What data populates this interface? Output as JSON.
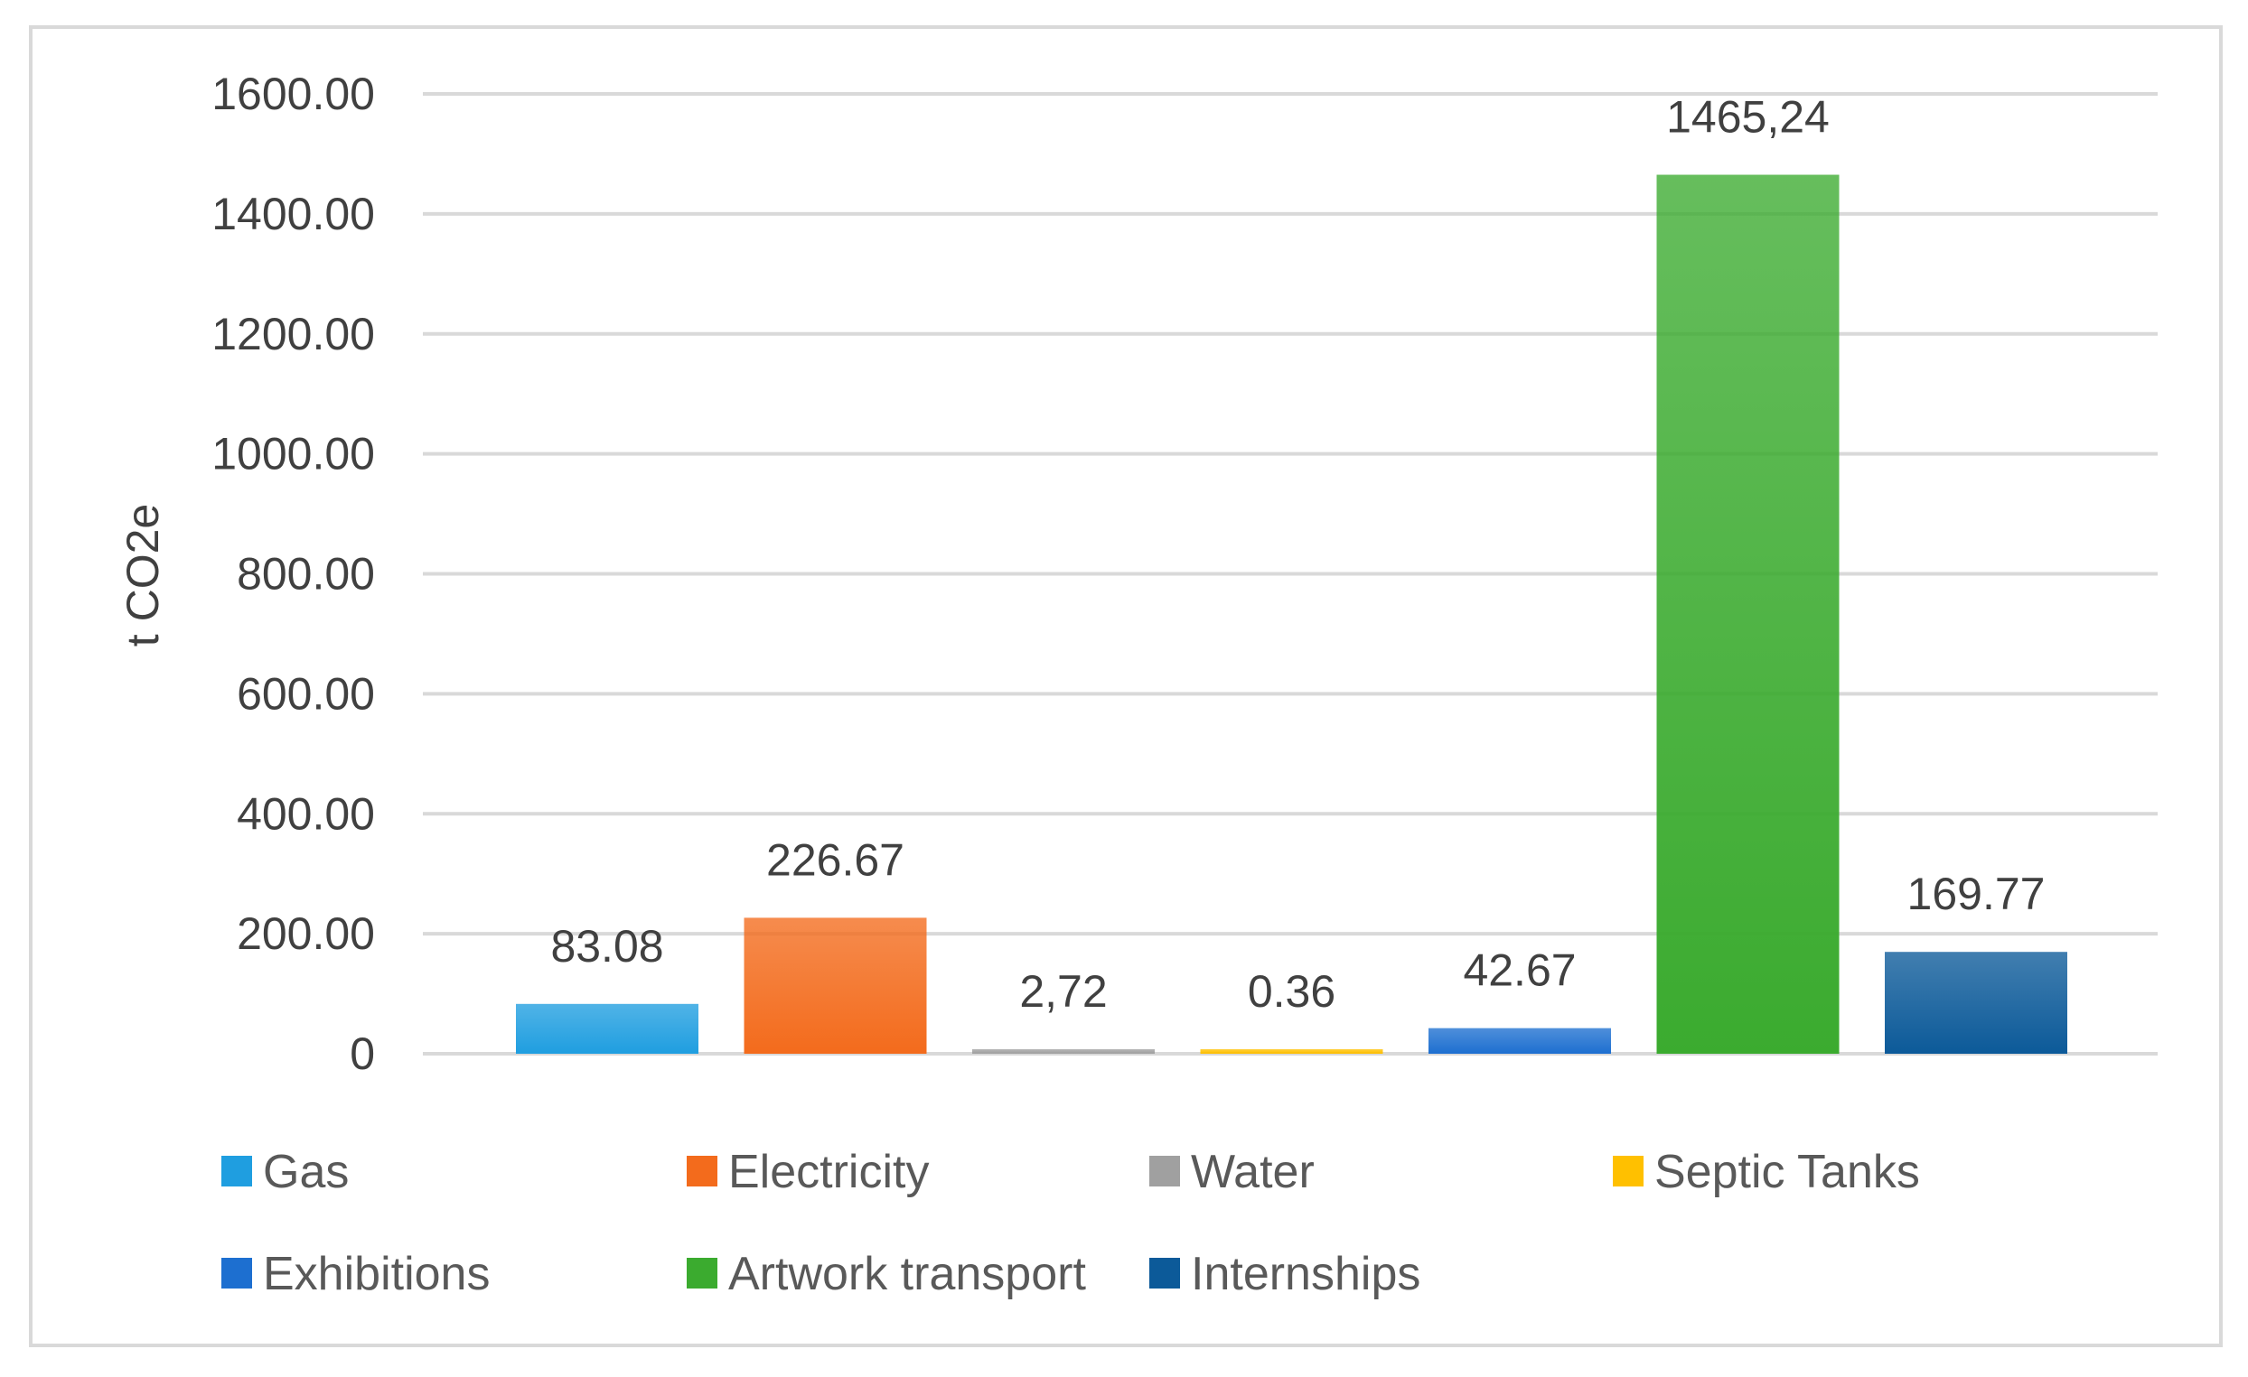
{
  "chart_data": {
    "type": "bar",
    "title": "",
    "xlabel": "",
    "ylabel": "t CO2e",
    "ylim": [
      0,
      1600
    ],
    "yticks": [
      0,
      200,
      400,
      600,
      800,
      1000,
      1200,
      1400,
      1600
    ],
    "ytick_labels": [
      "0",
      "200.00",
      "400.00",
      "600.00",
      "800.00",
      "1000.00",
      "1200.00",
      "1400.00",
      "1600.00"
    ],
    "grid": true,
    "legend_position": "bottom",
    "categories": [
      "Gas",
      "Electricity",
      "Water",
      "Septic Tanks",
      "Exhibitions",
      "Artwork transport",
      "Internships"
    ],
    "values": [
      83.08,
      226.67,
      2.72,
      0.36,
      42.67,
      1465.24,
      169.77
    ],
    "data_labels": [
      "83.08",
      "226.67",
      "2,72",
      "0.36",
      "42.67",
      "1465,24",
      "169.77"
    ],
    "colors": [
      "#1f9ee0",
      "#f36b1c",
      "#a0a0a0",
      "#ffc000",
      "#1d6fd0",
      "#3bab2f",
      "#0c5a99"
    ],
    "legend": [
      {
        "label": "Gas",
        "color": "#1f9ee0"
      },
      {
        "label": "Electricity",
        "color": "#f36b1c"
      },
      {
        "label": "Water",
        "color": "#a0a0a0"
      },
      {
        "label": "Septic Tanks",
        "color": "#ffc000"
      },
      {
        "label": "Exhibitions",
        "color": "#1d6fd0"
      },
      {
        "label": "Artwork transport",
        "color": "#3bab2f"
      },
      {
        "label": "Internships",
        "color": "#0c5a99"
      }
    ]
  }
}
